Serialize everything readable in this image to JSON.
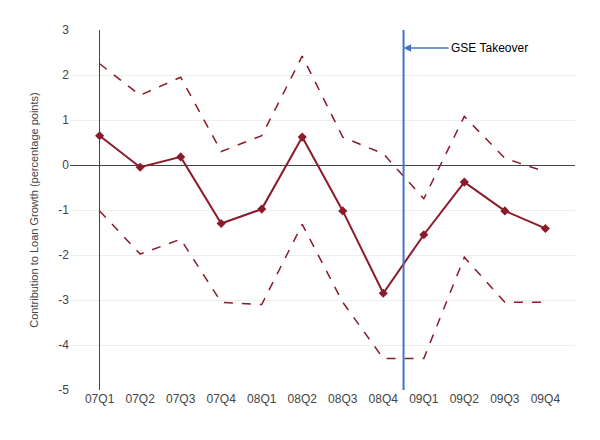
{
  "chart_data": {
    "type": "line",
    "y_label": "Contribution to Loan Growth (percentage points)",
    "categories": [
      "07Q1",
      "07Q2",
      "07Q3",
      "07Q4",
      "08Q1",
      "08Q2",
      "08Q3",
      "08Q4",
      "09Q1",
      "09Q2",
      "09Q3",
      "09Q4"
    ],
    "series": [
      {
        "color": "#8b1a2a",
        "line_style": "dashed",
        "values": [
          2.25,
          1.55,
          1.95,
          0.3,
          0.65,
          2.42,
          0.62,
          0.25,
          -0.75,
          1.08,
          0.15,
          -0.15
        ]
      },
      {
        "color": "#8b1a2a",
        "line_style": "dashed",
        "values": [
          -1.02,
          -1.98,
          -1.65,
          -3.05,
          -3.1,
          -1.32,
          -3.05,
          -4.3,
          -4.3,
          -2.05,
          -3.05,
          -3.05
        ]
      },
      {
        "color": "#8b1a2a",
        "line_style": "solid",
        "marker": "diamond",
        "values": [
          0.65,
          -0.05,
          0.18,
          -1.3,
          -0.98,
          0.62,
          -1.02,
          -2.85,
          -1.55,
          -0.38,
          -1.02,
          -1.41
        ]
      }
    ],
    "annotations": [
      {
        "text": "GSE Takeover",
        "x": 7.5,
        "color": "#4472c4"
      }
    ],
    "ylim": [
      -5,
      3
    ],
    "yticks": [
      -5,
      -4,
      -3,
      -2,
      -1,
      0,
      1,
      2,
      3
    ],
    "grid": true
  }
}
